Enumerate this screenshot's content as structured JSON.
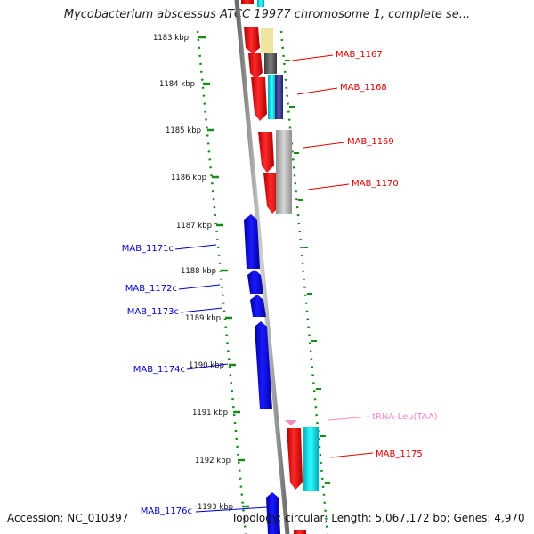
{
  "title": "Mycobacterium abscessus ATCC 19977 chromosome 1, complete se...",
  "footer": {
    "accession": "Accession: NC_010397",
    "summary": "Topology: circular; Length: 5,067,172 bp; Genes: 4,970"
  },
  "scale_labels": [
    "1183 kbp",
    "1184 kbp",
    "1185 kbp",
    "1186 kbp",
    "1187 kbp",
    "1188 kbp",
    "1189 kbp",
    "1190 kbp",
    "1191 kbp",
    "1192 kbp",
    "1193 kbp"
  ],
  "gene_labels": [
    {
      "text": "MAB_1167",
      "color": "#e00000"
    },
    {
      "text": "MAB_1168",
      "color": "#e00000"
    },
    {
      "text": "MAB_1169",
      "color": "#e00000"
    },
    {
      "text": "MAB_1170",
      "color": "#e00000"
    },
    {
      "text": "MAB_1171c",
      "color": "#0000cc"
    },
    {
      "text": "MAB_1172c",
      "color": "#0000cc"
    },
    {
      "text": "MAB_1173c",
      "color": "#0000cc"
    },
    {
      "text": "MAB_1174c",
      "color": "#0000cc"
    },
    {
      "text": "tRNA-Leu(TAA)",
      "color": "#f08cc0"
    },
    {
      "text": "MAB_1175",
      "color": "#e00000"
    },
    {
      "text": "MAB_1176c",
      "color": "#0000cc"
    }
  ],
  "colors": {
    "forward": "#ff0000",
    "reverse": "#0000ee",
    "trna": "#f08cc0",
    "backbone": "#909090",
    "ticks": "#1a8a1a"
  }
}
